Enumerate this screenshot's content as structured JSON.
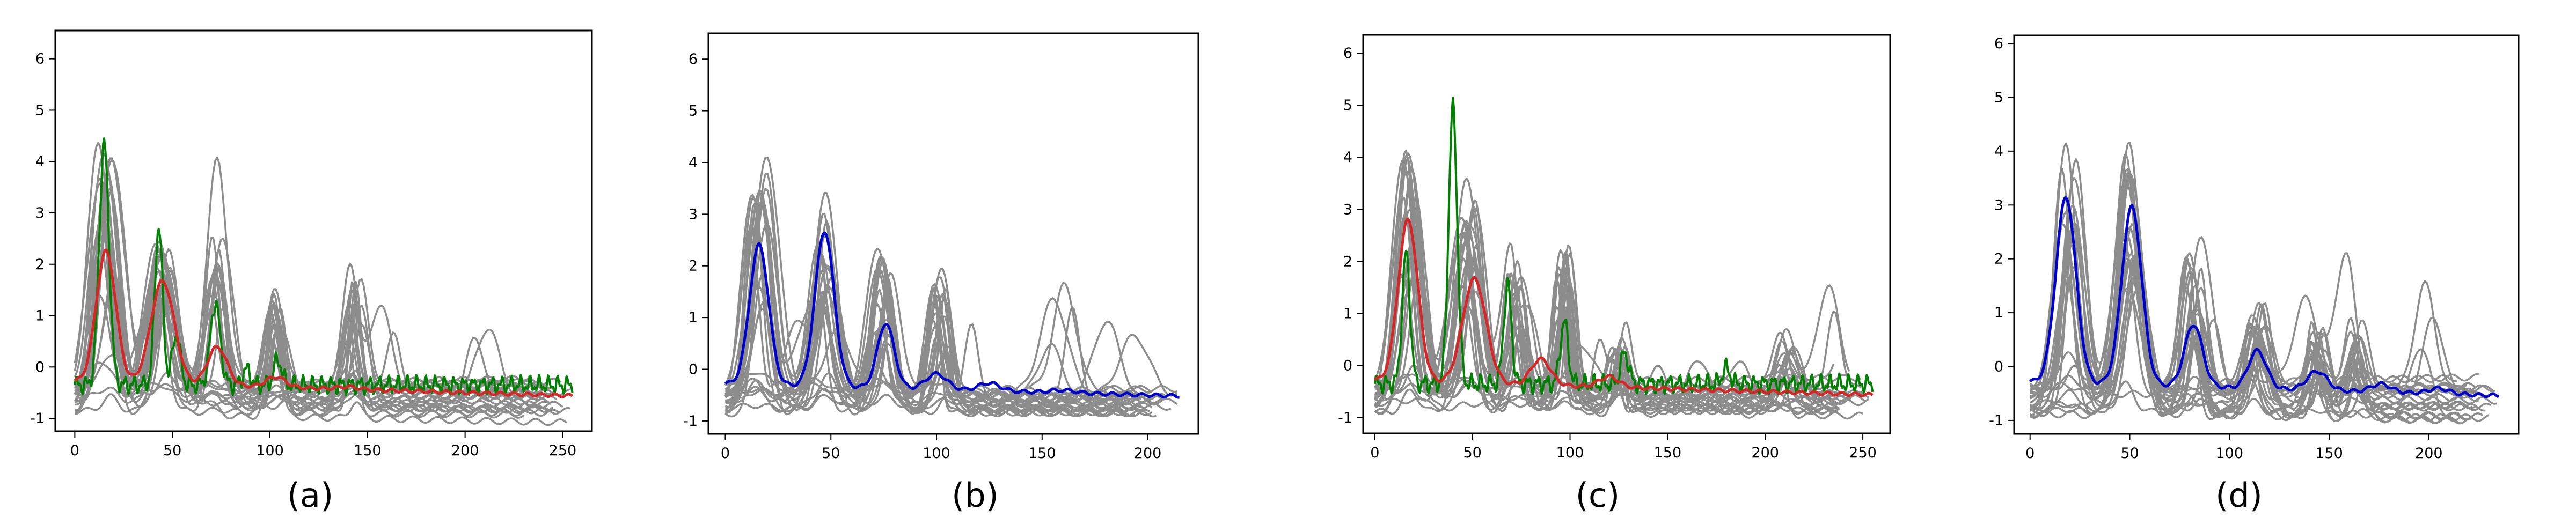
{
  "chart_data": [
    {
      "type": "line",
      "caption": "(a)",
      "xlim": [
        -10,
        265
      ],
      "ylim": [
        -1.25,
        6.55
      ],
      "xticks": [
        "0",
        "50",
        "100",
        "150",
        "200",
        "250"
      ],
      "yticks": [
        "-1",
        "0",
        "1",
        "2",
        "3",
        "4",
        "5",
        "6"
      ],
      "grid": false,
      "xmax": 255,
      "gray_seed": 11,
      "gray_peaks": [
        [
          16,
          4.6,
          5
        ],
        [
          45,
          3.6,
          5
        ],
        [
          72,
          3.0,
          4
        ],
        [
          103,
          1.8,
          3
        ],
        [
          143,
          2.5,
          3
        ]
      ],
      "mean_series": {
        "color": "#d62728",
        "peaks": [
          [
            16,
            2.55,
            5
          ],
          [
            45,
            2.0,
            6
          ],
          [
            73,
            0.75,
            5
          ],
          [
            103,
            0.2,
            5
          ],
          [
            140,
            0.05,
            5
          ]
        ]
      },
      "sample_series": {
        "color": "#008000",
        "peaks": [
          [
            15,
            4.7,
            2.5
          ],
          [
            43,
            3.1,
            2
          ],
          [
            52,
            1.0,
            2
          ],
          [
            72,
            1.6,
            2.5
          ],
          [
            88,
            0.3,
            2
          ],
          [
            104,
            0.5,
            2
          ]
        ]
      }
    },
    {
      "type": "line",
      "caption": "(b)",
      "xlim": [
        -8,
        224
      ],
      "ylim": [
        -1.25,
        6.5
      ],
      "xticks": [
        "0",
        "50",
        "100",
        "150",
        "200"
      ],
      "yticks": [
        "-1",
        "0",
        "1",
        "2",
        "3",
        "4",
        "5",
        "6"
      ],
      "grid": false,
      "xmax": 215,
      "gray_seed": 23,
      "gray_peaks": [
        [
          16,
          4.4,
          4.5
        ],
        [
          47,
          4.2,
          4.5
        ],
        [
          76,
          3.0,
          4
        ],
        [
          102,
          2.4,
          3.5
        ]
      ],
      "mean_series": {
        "color": "#0000cd",
        "peaks": [
          [
            16,
            2.7,
            4.5
          ],
          [
            47,
            3.0,
            4.5
          ],
          [
            76,
            1.25,
            4
          ],
          [
            100,
            0.3,
            5
          ],
          [
            125,
            0.15,
            5
          ],
          [
            160,
            0.05,
            6
          ]
        ]
      },
      "sample_series": null
    },
    {
      "type": "line",
      "caption": "(c)",
      "xlim": [
        -6,
        264
      ],
      "ylim": [
        -1.3,
        6.35
      ],
      "xticks": [
        "0",
        "50",
        "100",
        "150",
        "200",
        "250"
      ],
      "yticks": [
        "-1",
        "0",
        "1",
        "2",
        "3",
        "4",
        "5",
        "6"
      ],
      "grid": false,
      "xmax": 255,
      "gray_seed": 37,
      "gray_peaks": [
        [
          18,
          4.6,
          5
        ],
        [
          48,
          4.0,
          5
        ],
        [
          72,
          2.5,
          4
        ],
        [
          97,
          3.2,
          3
        ],
        [
          125,
          1.2,
          3
        ],
        [
          210,
          1.0,
          4
        ]
      ],
      "mean_series": {
        "color": "#d62728",
        "peaks": [
          [
            17,
            3.1,
            5
          ],
          [
            51,
            2.0,
            6
          ],
          [
            85,
            0.5,
            5
          ],
          [
            120,
            0.2,
            5
          ]
        ]
      },
      "sample_series": {
        "color": "#008000",
        "peaks": [
          [
            16,
            2.5,
            2
          ],
          [
            40,
            5.3,
            2.2
          ],
          [
            68,
            1.9,
            2
          ],
          [
            97,
            1.2,
            2
          ],
          [
            128,
            0.6,
            2
          ],
          [
            180,
            0.3,
            2
          ]
        ]
      }
    },
    {
      "type": "line",
      "caption": "(d)",
      "xlim": [
        -8,
        245
      ],
      "ylim": [
        -1.25,
        6.15
      ],
      "xticks": [
        "0",
        "50",
        "100",
        "150",
        "200"
      ],
      "yticks": [
        "-1",
        "0",
        "1",
        "2",
        "3",
        "4",
        "5",
        "6"
      ],
      "grid": false,
      "xmax": 235,
      "gray_seed": 51,
      "gray_peaks": [
        [
          19,
          4.5,
          5
        ],
        [
          51,
          4.3,
          5
        ],
        [
          82,
          3.0,
          4
        ],
        [
          114,
          1.6,
          4
        ],
        [
          144,
          1.2,
          3
        ],
        [
          163,
          1.2,
          3
        ]
      ],
      "mean_series": {
        "color": "#0000cd",
        "peaks": [
          [
            18,
            3.45,
            5
          ],
          [
            51,
            3.3,
            5
          ],
          [
            82,
            1.15,
            4.5
          ],
          [
            114,
            0.7,
            4.5
          ],
          [
            144,
            0.35,
            5
          ],
          [
            176,
            0.15,
            5
          ],
          [
            205,
            0.1,
            5
          ]
        ]
      },
      "sample_series": null
    }
  ]
}
